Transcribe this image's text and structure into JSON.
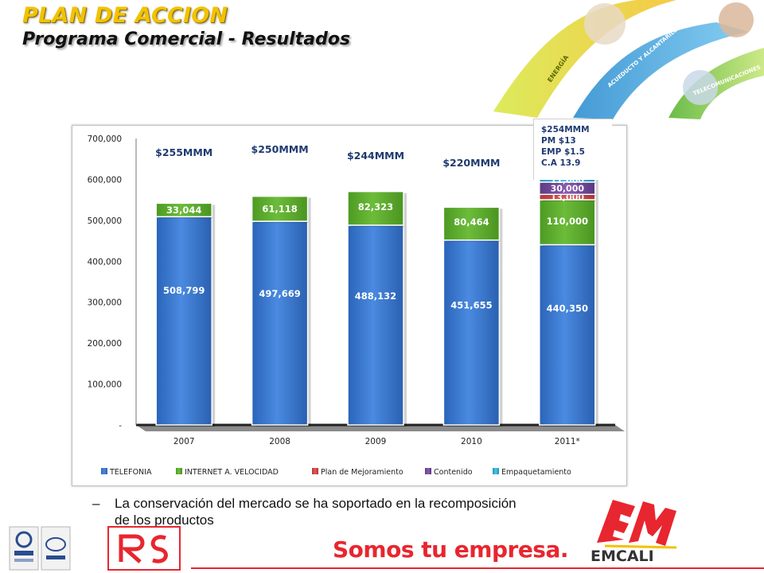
{
  "slide": {
    "title": "PLAN DE ACCION",
    "subtitle": "Programa Comercial - Resultados",
    "annotation_box": [
      "$254MMM",
      "PM $13",
      "EMP $1.5",
      "C.A 13.9"
    ],
    "bullet": {
      "dash": "–",
      "text": "La conservación del mercado se ha soportado en la recomposición de los productos"
    },
    "slogan": "Somos tu empresa.",
    "logo_text": "EMCALI",
    "banner_labels": [
      "ENERGÍA",
      "ACUEDUCTO Y ALCANTARILLADO",
      "TELECOMUNICACIONES"
    ],
    "colors": {
      "title": "#f2c200",
      "slogan": "#e8262f"
    }
  },
  "chart_data": {
    "type": "bar",
    "stacked": true,
    "categories": [
      "2007",
      "2008",
      "2009",
      "2010",
      "2011*"
    ],
    "ylim": [
      0,
      700000
    ],
    "ytick_labels": [
      "-",
      "100,000",
      "200,000",
      "300,000",
      "400,000",
      "500,000",
      "600,000",
      "700,000"
    ],
    "ytick_values": [
      0,
      100000,
      200000,
      300000,
      400000,
      500000,
      600000,
      700000
    ],
    "legend_position": "bottom",
    "series": [
      {
        "name": "TELEFONIA",
        "color": "#3b7ad6",
        "values": [
          508799,
          497669,
          488132,
          451655,
          440350
        ],
        "labels": [
          "508,799",
          "497,669",
          "488,132",
          "451,655",
          "440,350"
        ]
      },
      {
        "name": "INTERNET  A. VELOCIDAD",
        "color": "#5da82e",
        "values": [
          33044,
          61118,
          82323,
          80464,
          110000
        ],
        "labels": [
          "33,044",
          "61,118",
          "82,323",
          "80,464",
          "110,000"
        ]
      },
      {
        "name": "Plan de Mejoramiento",
        "color": "#d84a4a",
        "values": [
          0,
          0,
          0,
          0,
          13000
        ],
        "labels": [
          "",
          "",
          "",
          "",
          "13,000"
        ]
      },
      {
        "name": "Contenido",
        "color": "#7a4ea0",
        "values": [
          0,
          0,
          0,
          0,
          30000
        ],
        "labels": [
          "",
          "",
          "",
          "",
          "30,000"
        ]
      },
      {
        "name": "Empaquetamiento",
        "color": "#34b5d8",
        "values": [
          0,
          0,
          0,
          0,
          11000
        ],
        "labels": [
          "",
          "",
          "",
          "",
          "11,000"
        ]
      }
    ],
    "annotations": [
      {
        "category": "2007",
        "text": "$255MMM"
      },
      {
        "category": "2008",
        "text": "$250MMM"
      },
      {
        "category": "2009",
        "text": "$244MMM"
      },
      {
        "category": "2010",
        "text": "$220MMM"
      }
    ]
  }
}
